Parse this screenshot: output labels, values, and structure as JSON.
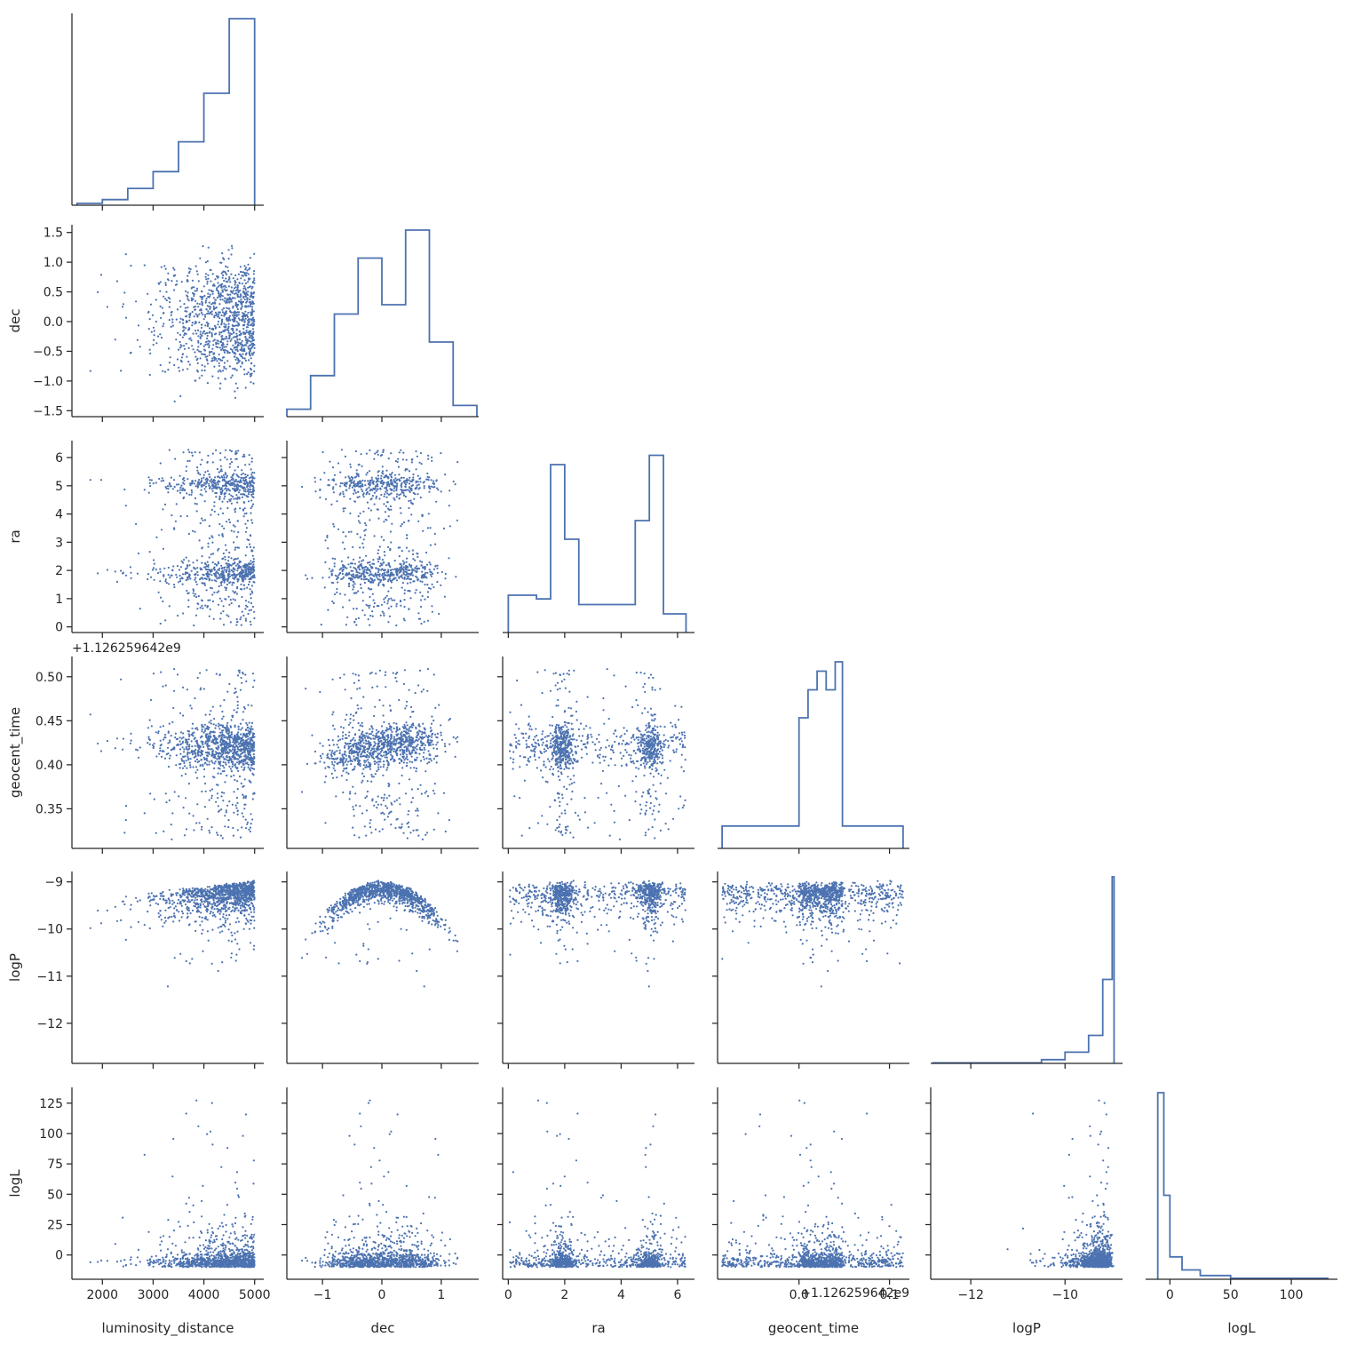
{
  "chart_data": {
    "type": "scatter",
    "variables": [
      "luminosity_distance",
      "dec",
      "ra",
      "geocent_time",
      "logP",
      "logL"
    ],
    "axis_labels": [
      "luminosity_distance",
      "dec",
      "ra",
      "geocent_time",
      "logP",
      "logL"
    ],
    "series_color": "#4c72b0",
    "layout": "corner pairplot: lower-triangle scatter, step histograms on diagonal",
    "ranges": {
      "luminosity_distance": [
        1400,
        5180
      ],
      "dec": [
        -1.6,
        1.63
      ],
      "ra": [
        -0.2,
        6.6
      ],
      "geocent_time": [
        0.305,
        0.523
      ],
      "geocent_time_x": [
        -0.09,
        0.122
      ],
      "logP": [
        -12.85,
        -8.78
      ],
      "logL": [
        -20,
        138
      ]
    },
    "ticks": {
      "luminosity_distance": [
        2000,
        3000,
        4000,
        5000
      ],
      "dec_y": [
        -1.5,
        -1.0,
        -0.5,
        0.0,
        0.5,
        1.0,
        1.5
      ],
      "dec_x": [
        -1,
        0,
        1
      ],
      "ra_y": [
        0,
        1,
        2,
        3,
        4,
        5,
        6
      ],
      "ra_x": [
        0,
        2,
        4,
        6
      ],
      "geocent_time_y": [
        0.35,
        0.4,
        0.45,
        0.5
      ],
      "geocent_time_x": [
        0.0,
        0.1
      ],
      "logP_y": [
        -12,
        -11,
        -10,
        -9
      ],
      "logP_x": [
        -12,
        -10
      ],
      "logL_y": [
        0,
        25,
        50,
        75,
        100,
        125
      ],
      "logL_x": [
        0,
        50,
        100
      ]
    },
    "tick_labels": {
      "luminosity_distance": [
        "2000",
        "3000",
        "4000",
        "5000"
      ],
      "dec_y": [
        "−1.5",
        "−1.0",
        "−0.5",
        "0.0",
        "0.5",
        "1.0",
        "1.5"
      ],
      "dec_x": [
        "−1",
        "0",
        "1"
      ],
      "ra_y": [
        "0",
        "1",
        "2",
        "3",
        "4",
        "5",
        "6"
      ],
      "ra_x": [
        "0",
        "2",
        "4",
        "6"
      ],
      "geocent_time_y": [
        "0.35",
        "0.40",
        "0.45",
        "0.50"
      ],
      "geocent_time_x": [
        "0.0",
        "0.1"
      ],
      "logP_y": [
        "−12",
        "−11",
        "−10",
        "−9"
      ],
      "logP_x": [
        "−12",
        "−10"
      ],
      "logL_y": [
        "0",
        "25",
        "50",
        "75",
        "100",
        "125"
      ],
      "logL_x": [
        "0",
        "50",
        "100"
      ]
    },
    "offset_texts": {
      "geocent_time_y": "+1.126259642e9",
      "geocent_time_x": "+1.126259642e9"
    },
    "histograms": {
      "luminosity_distance": {
        "bin_edges": [
          1500,
          2000,
          2500,
          3000,
          3500,
          4000,
          4500,
          5000
        ],
        "relative_heights": [
          0.01,
          0.03,
          0.09,
          0.18,
          0.34,
          0.6,
          1.0
        ]
      },
      "dec": {
        "bin_edges": [
          -1.6,
          -1.2,
          -0.8,
          -0.4,
          0.0,
          0.4,
          0.8,
          1.2,
          1.6
        ],
        "relative_heights": [
          0.04,
          0.22,
          0.55,
          0.85,
          0.6,
          1.0,
          0.4,
          0.06
        ]
      },
      "ra": {
        "bin_edges": [
          0,
          1,
          1.5,
          2,
          2.5,
          4.5,
          5,
          5.5,
          6.3
        ],
        "relative_heights": [
          0.2,
          0.18,
          0.9,
          0.5,
          0.15,
          0.6,
          0.95,
          0.1
        ]
      },
      "geocent_time": {
        "bin_edges": [
          -0.085,
          0.0,
          0.01,
          0.02,
          0.03,
          0.04,
          0.048,
          0.115
        ],
        "relative_heights": [
          0.12,
          0.7,
          0.85,
          0.95,
          0.85,
          1.0,
          0.12
        ]
      },
      "logP": {
        "bin_edges": [
          -12.8,
          -10.5,
          -10.0,
          -9.5,
          -9.2,
          -9.0,
          -8.96
        ],
        "relative_heights": [
          0.003,
          0.02,
          0.06,
          0.15,
          0.45,
          1.0
        ]
      },
      "logL": {
        "bin_edges": [
          -10,
          -5,
          0,
          10,
          25,
          50,
          130
        ],
        "relative_heights": [
          1.0,
          0.45,
          0.12,
          0.05,
          0.02,
          0.005
        ]
      }
    }
  }
}
